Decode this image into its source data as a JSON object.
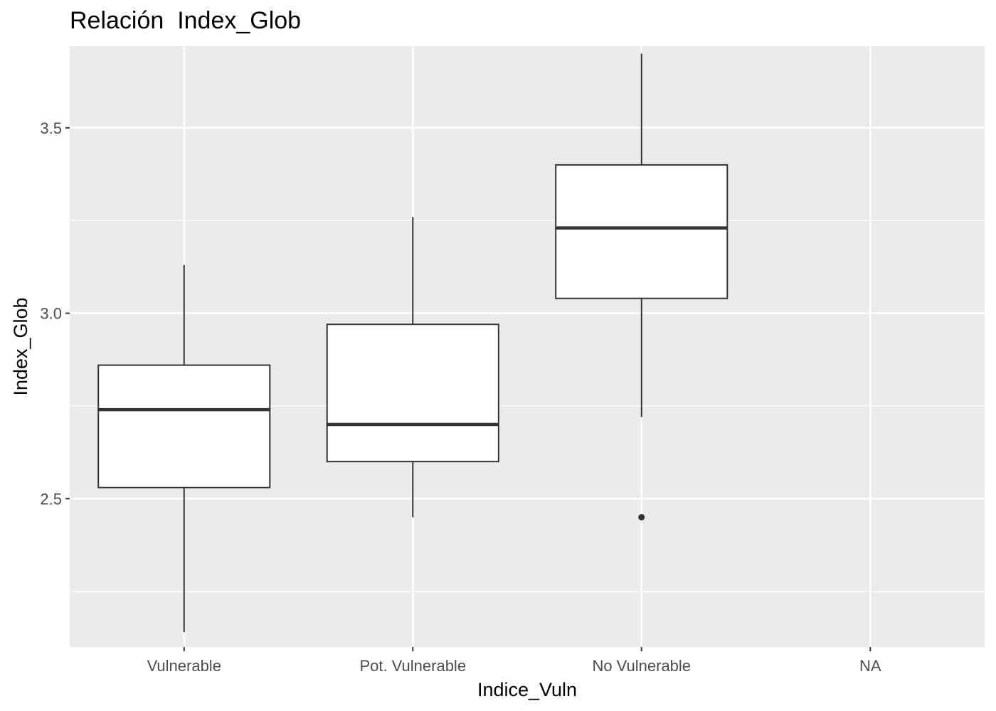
{
  "chart_data": {
    "type": "boxplot",
    "title": "Relación  Index_Glob",
    "xlabel": "Indice_Vuln",
    "ylabel": "Index_Glob",
    "categories": [
      "Vulnerable",
      "Pot. Vulnerable",
      "No Vulnerable",
      "NA"
    ],
    "ylim": [
      2.1,
      3.72
    ],
    "yticks": [
      2.5,
      3.0,
      3.5
    ],
    "ytick_labels": [
      "2.5",
      "3.0",
      "3.5"
    ],
    "grid": true,
    "panel_background": "#ebebeb",
    "gridline_color": "#ffffff",
    "box_fill": "#ffffff",
    "box_stroke": "#333333",
    "boxes": [
      {
        "category": "Vulnerable",
        "lower_whisker": 2.14,
        "q1": 2.53,
        "median": 2.74,
        "q3": 2.86,
        "upper_whisker": 3.13,
        "outliers": []
      },
      {
        "category": "Pot. Vulnerable",
        "lower_whisker": 2.45,
        "q1": 2.6,
        "median": 2.7,
        "q3": 2.97,
        "upper_whisker": 3.26,
        "outliers": []
      },
      {
        "category": "No Vulnerable",
        "lower_whisker": 2.72,
        "q1": 3.04,
        "median": 3.23,
        "q3": 3.4,
        "upper_whisker": 3.7,
        "outliers": [
          2.45
        ]
      }
    ]
  }
}
